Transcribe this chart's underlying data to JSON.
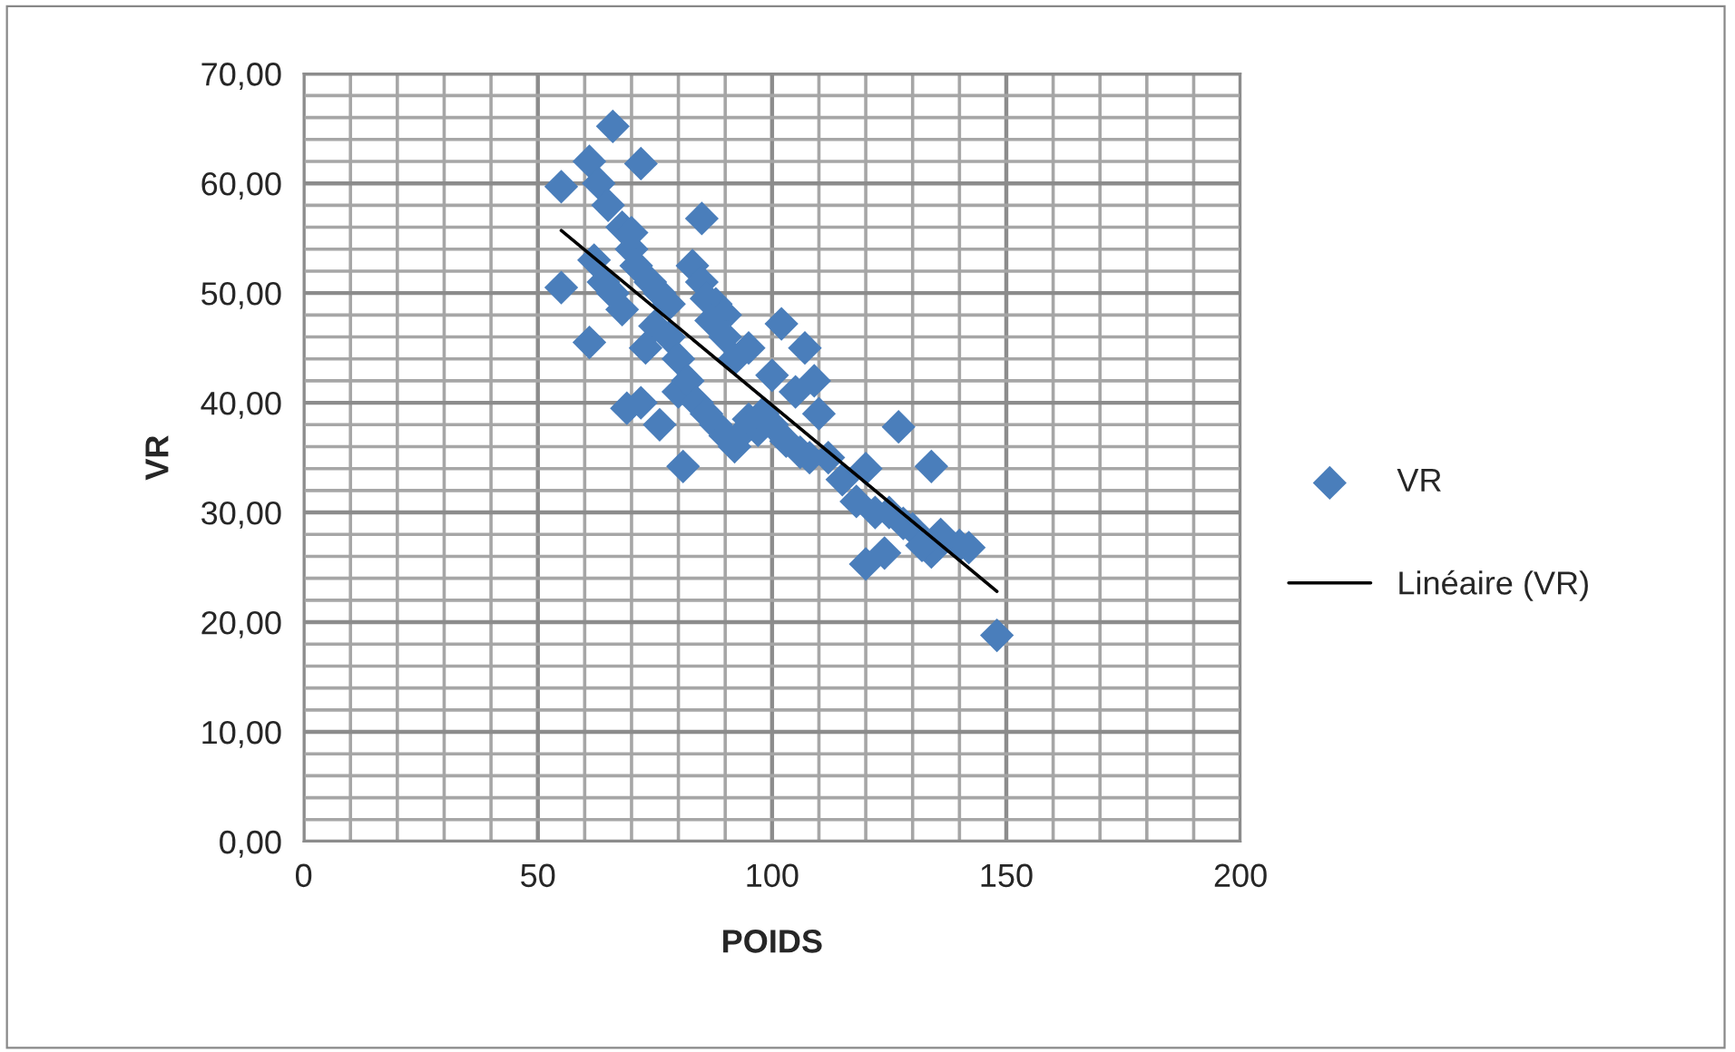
{
  "chart_data": {
    "type": "scatter",
    "xlabel": "POIDS",
    "ylabel": "VR",
    "xlim": [
      0,
      200
    ],
    "xticks": [
      0,
      50,
      100,
      150,
      200
    ],
    "ylim": [
      0,
      70
    ],
    "yticks": [
      {
        "value": 0,
        "label": "0,00"
      },
      {
        "value": 10,
        "label": "10,00"
      },
      {
        "value": 20,
        "label": "20,00"
      },
      {
        "value": 30,
        "label": "30,00"
      },
      {
        "value": 40,
        "label": "40,00"
      },
      {
        "value": 50,
        "label": "50,00"
      },
      {
        "value": 60,
        "label": "60,00"
      },
      {
        "value": 70,
        "label": "70,00"
      }
    ],
    "grid": true,
    "legend": "right",
    "marker": "diamond",
    "series": [
      {
        "name": "VR",
        "color": "#4a7ebb",
        "x": [
          55,
          55,
          61,
          61,
          63,
          66,
          68,
          70,
          71,
          72,
          73,
          69,
          72,
          76,
          81,
          80,
          83,
          85,
          85,
          88,
          90,
          92,
          95,
          97,
          100,
          102,
          107,
          105,
          109,
          110,
          112,
          115,
          120,
          120,
          124,
          125,
          127,
          130,
          134,
          134,
          136,
          140,
          142,
          148,
          62,
          64,
          66,
          68,
          75,
          78,
          80,
          82,
          84,
          86,
          88,
          90,
          93,
          95,
          98,
          100,
          103,
          106,
          108,
          118,
          122,
          128,
          132,
          65,
          70,
          74,
          76,
          78,
          86,
          87,
          90,
          92
        ],
        "values": [
          59.7,
          50.5,
          62,
          45.5,
          60,
          65.2,
          56,
          54,
          52.5,
          61.8,
          45,
          39.5,
          40,
          38,
          34.2,
          41,
          52.5,
          56.8,
          51,
          49,
          48,
          36,
          45,
          37.5,
          42.5,
          47.2,
          45,
          41,
          42,
          39,
          35,
          33,
          25.3,
          34,
          26.3,
          30,
          37.8,
          28.5,
          34.2,
          26.4,
          28,
          27,
          26.8,
          18.8,
          53,
          51,
          50,
          48.5,
          47,
          46,
          44,
          42,
          40,
          39,
          38,
          37,
          37,
          38.5,
          39,
          38,
          36.5,
          35.5,
          35,
          31,
          30,
          29,
          27,
          58,
          55.5,
          51,
          50,
          49,
          49.5,
          47.5,
          46,
          44
        ]
      },
      {
        "name": "Linéaire (VR)",
        "type": "line",
        "color": "#000000",
        "marker": "none",
        "line_style": "solid",
        "x": [
          55,
          148
        ],
        "values": [
          55.7,
          22.8
        ]
      }
    ]
  }
}
